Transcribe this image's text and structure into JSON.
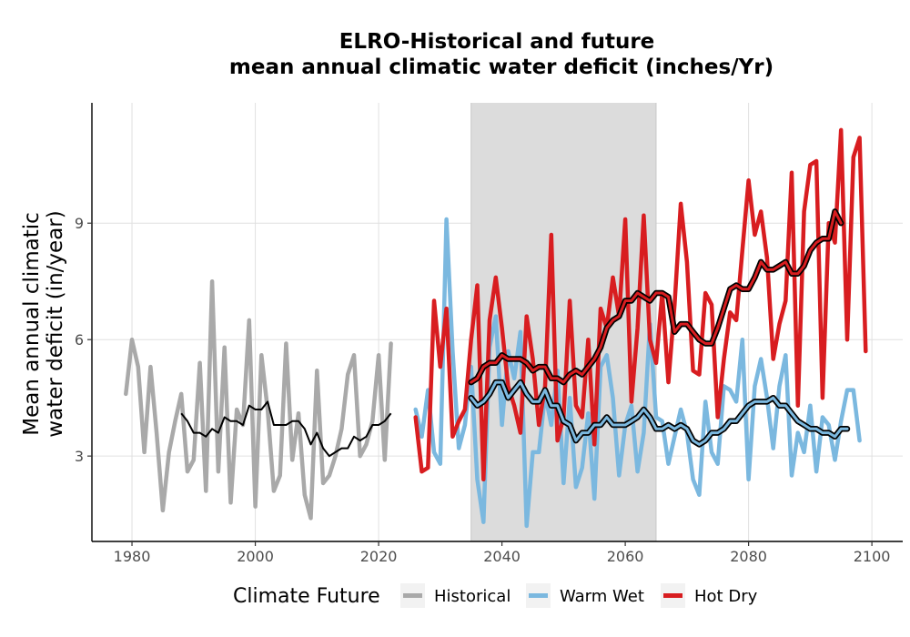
{
  "chart_data": {
    "type": "line",
    "title": "ELRO-Historical and future",
    "subtitle": "mean annual climatic water deficit (inches/Yr)",
    "xlabel": "",
    "ylabel_line1": "Mean annual climatic",
    "ylabel_line2": "water deficit (in/year)",
    "xlim": [
      1973.5,
      2105
    ],
    "ylim": [
      0.8,
      12.1
    ],
    "x_ticks": [
      1980,
      2000,
      2020,
      2040,
      2060,
      2080,
      2100
    ],
    "y_ticks": [
      3,
      6,
      9
    ],
    "grid": true,
    "shaded_period": [
      2035,
      2065
    ],
    "legend": {
      "title": "Climate Future",
      "position": "bottom"
    },
    "colors": {
      "Historical": "#a9a9a9",
      "Warm Wet": "#7bb8df",
      "Hot Dry": "#d81d20",
      "smooth": "#000000",
      "shade": "#dcdcdc",
      "grid": "#e0e0e0"
    },
    "series": [
      {
        "name": "Historical",
        "x_start": 1979,
        "values": [
          4.6,
          6.0,
          5.3,
          3.1,
          5.3,
          3.6,
          1.6,
          3.1,
          3.9,
          4.6,
          2.6,
          2.9,
          5.4,
          2.1,
          7.5,
          2.6,
          5.8,
          1.8,
          4.2,
          3.8,
          6.5,
          1.7,
          5.6,
          4.2,
          2.1,
          2.5,
          5.9,
          2.9,
          4.1,
          2.0,
          1.4,
          5.2,
          2.3,
          2.5,
          3.0,
          3.7,
          5.1,
          5.6,
          3.0,
          3.3,
          3.9,
          5.6,
          2.9,
          5.9
        ],
        "smooth": {
          "x_start": 1988,
          "values": [
            4.1,
            3.9,
            3.6,
            3.6,
            3.5,
            3.7,
            3.6,
            4.0,
            3.9,
            3.9,
            3.8,
            4.3,
            4.2,
            4.2,
            4.4,
            3.8,
            3.8,
            3.8,
            3.9,
            3.9,
            3.7,
            3.3,
            3.6,
            3.2,
            3.0,
            3.1,
            3.2,
            3.2,
            3.5,
            3.4,
            3.5,
            3.8,
            3.8,
            3.9,
            4.1
          ]
        }
      },
      {
        "name": "Warm Wet",
        "x_start": 2026,
        "values": [
          4.2,
          3.5,
          4.7,
          3.1,
          2.8,
          9.1,
          5.7,
          3.2,
          3.8,
          5.3,
          2.4,
          1.3,
          5.8,
          6.6,
          3.8,
          5.7,
          5.0,
          6.2,
          1.2,
          3.1,
          3.1,
          4.6,
          3.8,
          5.2,
          2.3,
          4.5,
          2.2,
          2.7,
          4.1,
          1.9,
          5.3,
          5.6,
          4.5,
          2.5,
          3.8,
          4.3,
          2.6,
          3.6,
          6.4,
          4.0,
          3.9,
          2.8,
          3.5,
          4.2,
          3.6,
          2.4,
          2.0,
          4.4,
          3.1,
          2.8,
          4.8,
          4.7,
          4.4,
          6.0,
          2.4,
          4.8,
          5.5,
          4.5,
          3.2,
          4.8,
          5.6,
          2.5,
          3.6,
          3.1,
          4.3,
          2.6,
          4.0,
          3.8,
          2.9,
          3.9,
          4.7,
          4.7,
          3.4
        ],
        "smooth": {
          "x_start": 2035,
          "values": [
            4.5,
            4.3,
            4.4,
            4.6,
            4.9,
            4.9,
            4.5,
            4.7,
            4.9,
            4.6,
            4.4,
            4.4,
            4.7,
            4.3,
            4.3,
            3.9,
            3.8,
            3.4,
            3.6,
            3.6,
            3.8,
            3.8,
            4.0,
            3.8,
            3.8,
            3.8,
            3.9,
            4.0,
            4.2,
            4.0,
            3.7,
            3.7,
            3.8,
            3.7,
            3.8,
            3.7,
            3.4,
            3.3,
            3.4,
            3.6,
            3.6,
            3.7,
            3.9,
            3.9,
            4.1,
            4.3,
            4.4,
            4.4,
            4.4,
            4.5,
            4.3,
            4.3,
            4.1,
            3.9,
            3.8,
            3.7,
            3.7,
            3.6,
            3.6,
            3.5,
            3.7,
            3.7
          ]
        }
      },
      {
        "name": "Hot Dry",
        "x_start": 2026,
        "values": [
          4.0,
          2.6,
          2.7,
          7.0,
          5.3,
          6.8,
          3.5,
          3.9,
          4.2,
          6.0,
          7.4,
          2.4,
          6.5,
          7.6,
          6.3,
          4.8,
          4.3,
          3.6,
          6.6,
          5.5,
          3.8,
          4.8,
          8.7,
          3.4,
          4.0,
          7.0,
          4.3,
          4.0,
          6.0,
          3.3,
          6.8,
          6.3,
          7.6,
          6.6,
          9.1,
          4.4,
          6.3,
          9.2,
          6.0,
          5.4,
          7.2,
          4.9,
          6.9,
          9.5,
          8.0,
          5.2,
          5.1,
          7.2,
          6.9,
          4.0,
          5.5,
          6.7,
          6.5,
          8.3,
          10.1,
          8.7,
          9.3,
          8.1,
          5.5,
          6.4,
          7.0,
          10.3,
          4.3,
          9.3,
          10.5,
          10.6,
          4.5,
          9.0,
          8.5,
          11.4,
          6.0,
          10.7,
          11.2,
          5.7
        ],
        "smooth": {
          "x_start": 2035,
          "values": [
            4.9,
            5.0,
            5.3,
            5.4,
            5.4,
            5.6,
            5.5,
            5.5,
            5.5,
            5.4,
            5.2,
            5.3,
            5.3,
            5.0,
            5.0,
            4.9,
            5.1,
            5.2,
            5.1,
            5.3,
            5.5,
            5.8,
            6.3,
            6.5,
            6.6,
            7.0,
            7.0,
            7.2,
            7.1,
            7.0,
            7.2,
            7.2,
            7.1,
            6.2,
            6.4,
            6.4,
            6.2,
            6.0,
            5.9,
            5.9,
            6.3,
            6.8,
            7.3,
            7.4,
            7.3,
            7.3,
            7.6,
            8.0,
            7.8,
            7.8,
            7.9,
            8.0,
            7.7,
            7.7,
            7.9,
            8.3,
            8.5,
            8.6,
            8.6,
            9.3,
            9.0
          ]
        }
      }
    ]
  }
}
